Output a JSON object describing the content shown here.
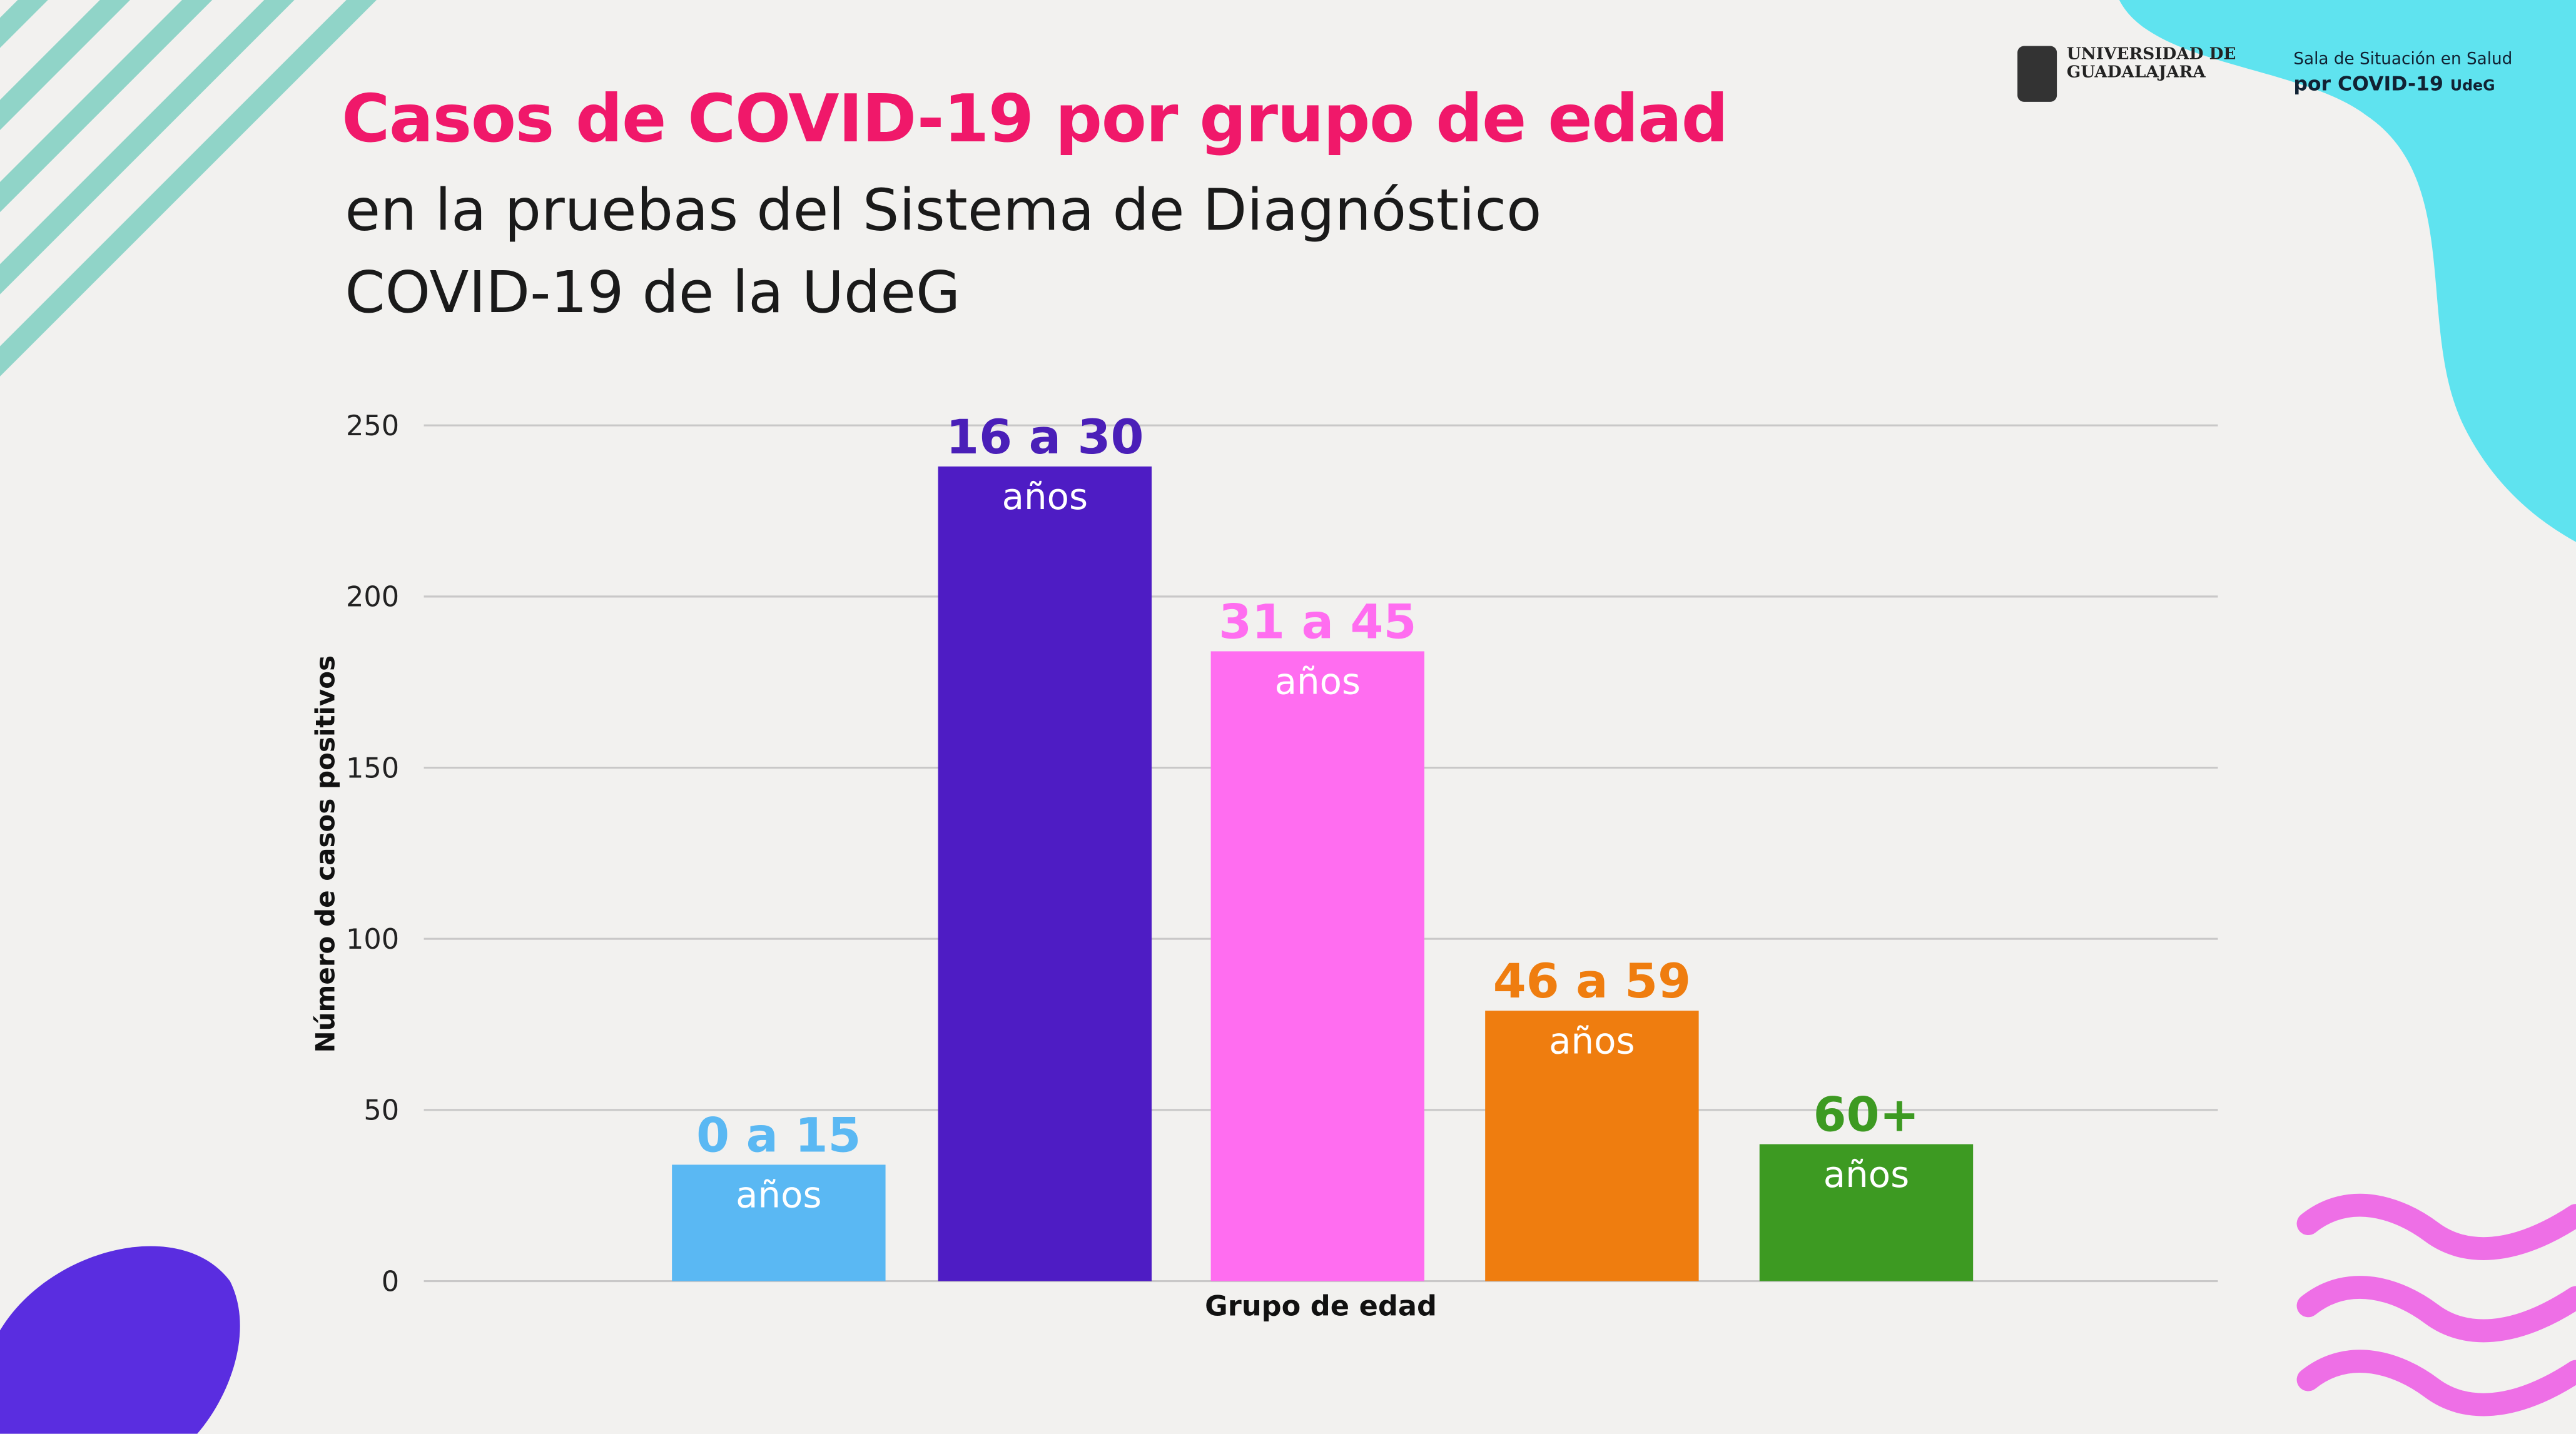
{
  "header": {
    "title": "Casos de COVID-19 por grupo de edad",
    "subtitle_line1": "en la pruebas del Sistema de Diagnóstico",
    "subtitle_line2": "COVID-19 de la UdeG"
  },
  "logos": {
    "university_line1": "UNIVERSIDAD DE",
    "university_line2": "GUADALAJARA",
    "sala_line1": "Sala de Situación en Salud",
    "sala_line2": "por COVID-19",
    "sala_udeg": "UdeG"
  },
  "colors": {
    "title": "#f0186a",
    "teal": "#5fe3ef",
    "purple": "#5a2de0",
    "pink": "#ee6fe6"
  },
  "chart_data": {
    "type": "bar",
    "title": "Casos de COVID-19 por grupo de edad",
    "xlabel": "Grupo de edad",
    "ylabel": "Número de casos positivos",
    "ylim": [
      0,
      250
    ],
    "yticks": [
      0,
      50,
      100,
      150,
      200,
      250
    ],
    "grid": true,
    "categories": [
      "0 a 15",
      "16 a 30",
      "31 a 45",
      "46 a 59",
      "60+"
    ],
    "category_unit": "años",
    "values": [
      34,
      238,
      184,
      79,
      40
    ],
    "bar_colors": [
      "#5ab8f3",
      "#4e1cc4",
      "#ff6df0",
      "#ef7d0f",
      "#3d9a22"
    ],
    "label_colors": [
      "#5ab8f3",
      "#4a1fb8",
      "#ff6df0",
      "#ef7d0f",
      "#3d9a22"
    ]
  }
}
